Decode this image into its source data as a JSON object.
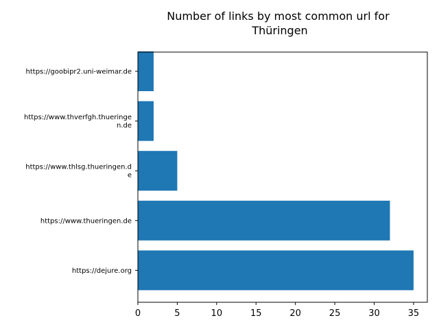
{
  "chart_data": {
    "type": "bar",
    "orientation": "horizontal",
    "title_lines": [
      "Number of links by most common url for",
      "Thüringen"
    ],
    "categories": [
      {
        "lines": [
          "https://goobipr2.uni-weimar.de"
        ]
      },
      {
        "lines": [
          "https://www.thverfgh.thueringe",
          "n.de"
        ]
      },
      {
        "lines": [
          "https://www.thlsg.thueringen.d",
          "e"
        ]
      },
      {
        "lines": [
          "https://www.thueringen.de"
        ]
      },
      {
        "lines": [
          "https://dejure.org"
        ]
      }
    ],
    "values": [
      2,
      2,
      5,
      32,
      35
    ],
    "xlim": [
      0,
      36.75
    ],
    "xticks": [
      0,
      5,
      10,
      15,
      20,
      25,
      30,
      35
    ],
    "xlabel": "",
    "ylabel": "",
    "grid": false,
    "bar_color": "#1f77b4"
  }
}
